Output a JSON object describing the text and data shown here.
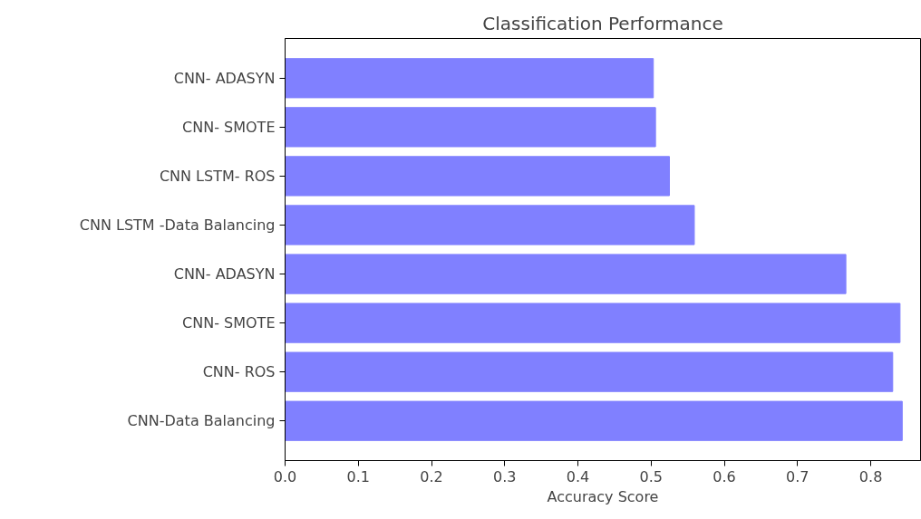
{
  "chart_data": {
    "type": "bar",
    "orientation": "horizontal",
    "title": "Classification Performance",
    "xlabel": "Accuracy Score",
    "categories": [
      "CNN- ADASYN",
      "CNN- SMOTE",
      "CNN LSTM- ROS",
      "CNN LSTM -Data Balancing",
      "CNN- ADASYN",
      "CNN- SMOTE",
      "CNN- ROS",
      "CNN-Data Balancing"
    ],
    "values": [
      0.503,
      0.506,
      0.525,
      0.559,
      0.766,
      0.84,
      0.83,
      0.843
    ],
    "color": "#8080ff",
    "xlim": [
      0,
      0.868
    ],
    "xticks": [
      {
        "value": 0,
        "label": "0.0"
      },
      0.1,
      0.2,
      0.3,
      0.4,
      0.5,
      0.6,
      0.7,
      0.8
    ],
    "grid": false
  }
}
